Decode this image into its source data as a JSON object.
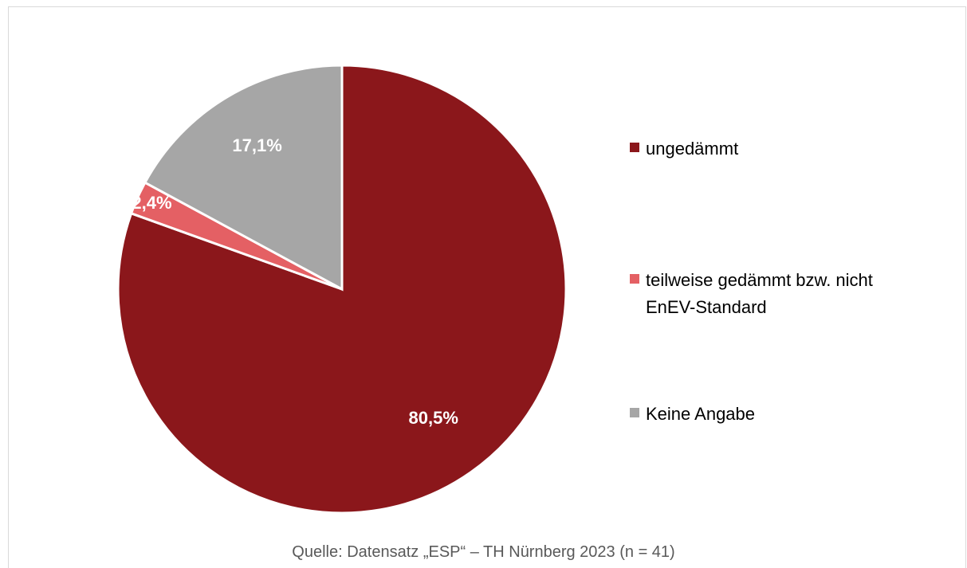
{
  "chart_data": {
    "type": "pie",
    "categories": [
      "ungedämmt",
      "teilweise gedämmt bzw. nicht EnEV-Standard",
      "Keine Angabe"
    ],
    "values": [
      80.5,
      2.4,
      17.1
    ],
    "data_labels": [
      "80,5%",
      "2,4%",
      "17,1%"
    ],
    "colors": [
      "#8b171b",
      "#e46064",
      "#a6a6a6"
    ],
    "legend_position": "right",
    "source": "Quelle: Datensatz „ESP“ – TH Nürnberg 2023 (n = 41)"
  }
}
